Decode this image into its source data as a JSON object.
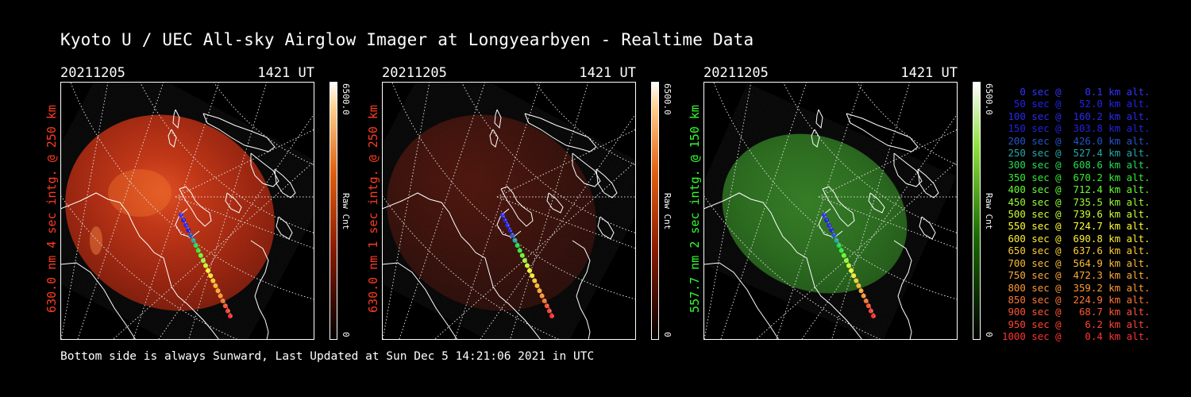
{
  "title": "Kyoto U / UEC All-sky Airglow Imager at Longyearbyen - Realtime Data",
  "footer": "Bottom side is always Sunward, Last Updated at Sun Dec  5 14:21:06 2021 in UTC",
  "panels": [
    {
      "date": "20211205",
      "time": "1421 UT",
      "label": "630.0 nm 4 sec intg. @ 250 km",
      "label_color": "#ff3b1f",
      "colorbar_max": "6500.0",
      "colorbar_min": "0",
      "colorbar_title": "Raw Cnt",
      "colormap": "red",
      "intensity": 0.85
    },
    {
      "date": "20211205",
      "time": "1421 UT",
      "label": "630.0 nm 1 sec intg. @ 250 km",
      "label_color": "#ff3b1f",
      "colorbar_max": "6500.0",
      "colorbar_min": "0",
      "colorbar_title": "Raw Cnt",
      "colormap": "red",
      "intensity": 0.22
    },
    {
      "date": "20211205",
      "time": "1421 UT",
      "label": "557.7 nm 2 sec intg. @ 150 km",
      "label_color": "#30ff30",
      "colorbar_max": "6500.0",
      "colorbar_min": "0",
      "colorbar_title": "Raw Cnt",
      "colormap": "green",
      "intensity": 0.65
    }
  ],
  "legend": [
    {
      "text": "   0 sec @    0.1 km alt.",
      "color": "#3333ff"
    },
    {
      "text": "  50 sec @   52.0 km alt.",
      "color": "#2222ee"
    },
    {
      "text": " 100 sec @  160.2 km alt.",
      "color": "#2a2aee"
    },
    {
      "text": " 150 sec @  303.8 km alt.",
      "color": "#2222dd"
    },
    {
      "text": " 200 sec @  426.0 km alt.",
      "color": "#2255cc"
    },
    {
      "text": " 250 sec @  527.4 km alt.",
      "color": "#22aaaa"
    },
    {
      "text": " 300 sec @  608.6 km alt.",
      "color": "#22dd55"
    },
    {
      "text": " 350 sec @  670.2 km alt.",
      "color": "#33ee33"
    },
    {
      "text": " 400 sec @  712.4 km alt.",
      "color": "#66ff33"
    },
    {
      "text": " 450 sec @  735.5 km alt.",
      "color": "#99ff33"
    },
    {
      "text": " 500 sec @  739.6 km alt.",
      "color": "#ccff33"
    },
    {
      "text": " 550 sec @  724.7 km alt.",
      "color": "#ffff33"
    },
    {
      "text": " 600 sec @  690.8 km alt.",
      "color": "#ffee33"
    },
    {
      "text": " 650 sec @  637.6 km alt.",
      "color": "#ffcc33"
    },
    {
      "text": " 700 sec @  564.9 km alt.",
      "color": "#ffbb33"
    },
    {
      "text": " 750 sec @  472.3 km alt.",
      "color": "#ffaa33"
    },
    {
      "text": " 800 sec @  359.2 km alt.",
      "color": "#ff9933"
    },
    {
      "text": " 850 sec @  224.9 km alt.",
      "color": "#ff7733"
    },
    {
      "text": " 900 sec @   68.7 km alt.",
      "color": "#ff5533"
    },
    {
      "text": " 950 sec @    6.2 km alt.",
      "color": "#ff4433"
    },
    {
      "text": "1000 sec @    0.4 km alt.",
      "color": "#ff3333"
    }
  ]
}
